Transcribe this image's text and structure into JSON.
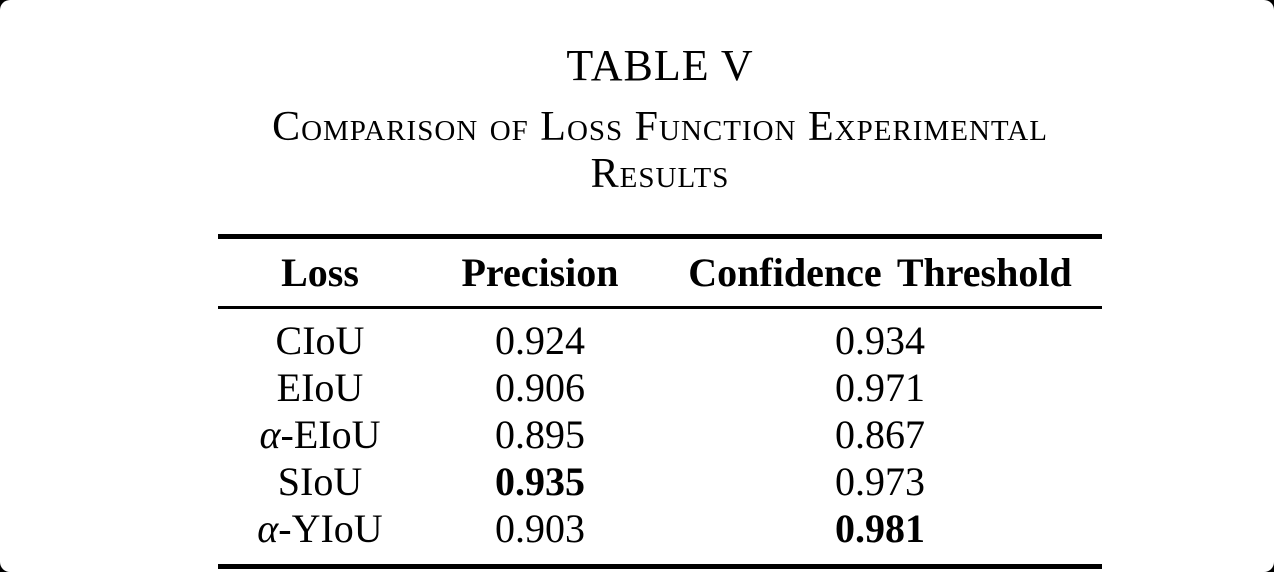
{
  "page": {
    "outer_background": "#000000",
    "card_background": "#ffffff",
    "text_color": "#000000",
    "rule_color": "#000000"
  },
  "caption": {
    "label": "TABLE V",
    "title": "Comparison of Loss Function Experimental Results"
  },
  "table": {
    "columns": [
      "Loss",
      "Precision",
      "Confidence Threshold"
    ],
    "rows": [
      {
        "loss": [
          {
            "text": "CIoU",
            "italic": false
          }
        ],
        "precision": {
          "text": "0.924",
          "bold": false
        },
        "confidence": {
          "text": "0.934",
          "bold": false
        }
      },
      {
        "loss": [
          {
            "text": "EIoU",
            "italic": false
          }
        ],
        "precision": {
          "text": "0.906",
          "bold": false
        },
        "confidence": {
          "text": "0.971",
          "bold": false
        }
      },
      {
        "loss": [
          {
            "text": "α",
            "italic": true
          },
          {
            "text": "-EIoU",
            "italic": false
          }
        ],
        "precision": {
          "text": "0.895",
          "bold": false
        },
        "confidence": {
          "text": "0.867",
          "bold": false
        }
      },
      {
        "loss": [
          {
            "text": "SIoU",
            "italic": false
          }
        ],
        "precision": {
          "text": "0.935",
          "bold": true
        },
        "confidence": {
          "text": "0.973",
          "bold": false
        }
      },
      {
        "loss": [
          {
            "text": "α",
            "italic": true
          },
          {
            "text": "-YIoU",
            "italic": false
          }
        ],
        "precision": {
          "text": "0.903",
          "bold": false
        },
        "confidence": {
          "text": "0.981",
          "bold": true
        }
      }
    ]
  }
}
